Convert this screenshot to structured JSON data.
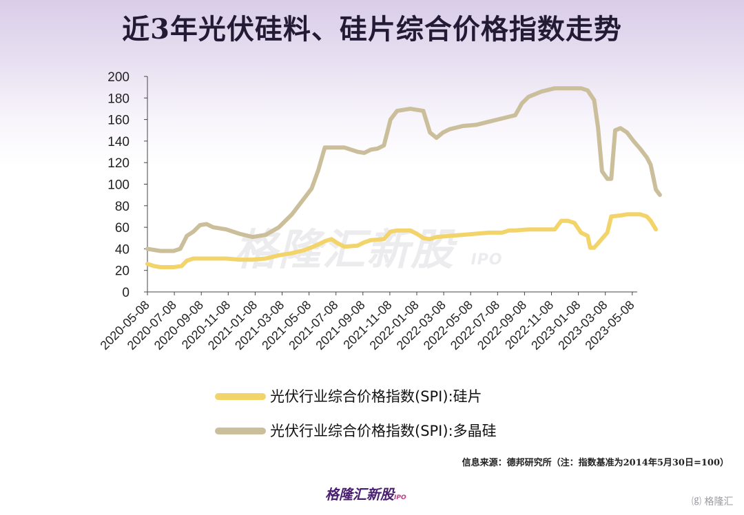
{
  "title": "近3年光伏硅料、硅片综合价格指数走势",
  "watermark": "格隆汇新股",
  "watermark_sub": "IPO",
  "source_note": "信息来源：德邦研究所（注：指数基准为2014年5月30日=100）",
  "brand_logo": "格隆汇新股",
  "brand_logo_sub": "IPO",
  "corner_logo": "格隆汇",
  "colors": {
    "wafer": "#f2d46a",
    "polysilicon": "#cbbf9b",
    "axis": "#444444"
  },
  "chart_data": {
    "type": "line",
    "x_tick_labels": [
      "2020-05-08",
      "2020-07-08",
      "2020-09-08",
      "2020-11-08",
      "2021-01-08",
      "2021-03-08",
      "2021-05-08",
      "2021-07-08",
      "2021-09-08",
      "2021-11-08",
      "2022-01-08",
      "2022-03-08",
      "2022-05-08",
      "2022-07-08",
      "2022-09-08",
      "2022-11-08",
      "2023-01-08",
      "2023-03-08",
      "2023-05-08"
    ],
    "x_range_months": [
      0,
      37
    ],
    "ylim": [
      0,
      200
    ],
    "y_ticks": [
      0,
      20,
      40,
      60,
      80,
      100,
      120,
      140,
      160,
      180,
      200
    ],
    "grid": false,
    "legend_position": "bottom",
    "series": [
      {
        "name": "光伏行业综合价格指数(SPI):硅片",
        "color_key": "wafer",
        "points": [
          [
            0,
            26
          ],
          [
            0.5,
            24
          ],
          [
            1,
            23
          ],
          [
            2,
            23
          ],
          [
            2.6,
            24
          ],
          [
            3,
            29
          ],
          [
            3.5,
            31
          ],
          [
            4,
            31
          ],
          [
            5,
            31
          ],
          [
            6,
            31
          ],
          [
            7,
            30
          ],
          [
            8,
            30
          ],
          [
            9,
            31
          ],
          [
            10,
            34
          ],
          [
            11,
            36
          ],
          [
            12,
            39
          ],
          [
            13,
            44
          ],
          [
            13.5,
            47
          ],
          [
            14,
            49
          ],
          [
            14.5,
            45
          ],
          [
            15,
            42
          ],
          [
            16,
            43
          ],
          [
            16.5,
            46
          ],
          [
            17,
            48
          ],
          [
            18,
            49
          ],
          [
            18.5,
            56
          ],
          [
            19,
            57
          ],
          [
            20,
            57
          ],
          [
            20.5,
            54
          ],
          [
            21,
            50
          ],
          [
            21.5,
            49
          ],
          [
            22,
            51
          ],
          [
            23,
            52
          ],
          [
            24,
            53
          ],
          [
            25,
            54
          ],
          [
            26,
            55
          ],
          [
            27,
            55
          ],
          [
            27.5,
            57
          ],
          [
            28,
            57
          ],
          [
            29,
            58
          ],
          [
            30,
            58
          ],
          [
            31,
            58
          ],
          [
            31.5,
            66
          ],
          [
            32,
            66
          ],
          [
            32.5,
            64
          ],
          [
            33,
            55
          ],
          [
            33.5,
            52
          ],
          [
            33.7,
            41
          ],
          [
            34,
            41
          ],
          [
            34.5,
            48
          ],
          [
            35,
            55
          ],
          [
            35.3,
            70
          ],
          [
            36,
            71
          ],
          [
            36.5,
            72
          ],
          [
            37,
            72
          ],
          [
            37.5,
            72
          ],
          [
            38,
            70
          ],
          [
            38.3,
            66
          ],
          [
            38.7,
            58
          ]
        ]
      },
      {
        "name": "光伏行业综合价格指数(SPI):多晶硅",
        "color_key": "polysilicon",
        "points": [
          [
            0,
            40
          ],
          [
            1,
            38
          ],
          [
            2,
            38
          ],
          [
            2.5,
            40
          ],
          [
            3,
            52
          ],
          [
            3.5,
            56
          ],
          [
            4,
            62
          ],
          [
            4.5,
            63
          ],
          [
            5,
            60
          ],
          [
            6,
            58
          ],
          [
            7,
            54
          ],
          [
            8,
            51
          ],
          [
            9,
            53
          ],
          [
            10,
            60
          ],
          [
            11,
            72
          ],
          [
            12,
            88
          ],
          [
            12.5,
            96
          ],
          [
            13,
            113
          ],
          [
            13.5,
            134
          ],
          [
            14.5,
            134
          ],
          [
            15,
            134
          ],
          [
            16,
            130
          ],
          [
            16.5,
            129
          ],
          [
            17,
            132
          ],
          [
            17.5,
            133
          ],
          [
            18,
            136
          ],
          [
            18.5,
            160
          ],
          [
            19,
            168
          ],
          [
            20,
            170
          ],
          [
            21,
            168
          ],
          [
            21.5,
            148
          ],
          [
            22,
            143
          ],
          [
            22.5,
            148
          ],
          [
            23,
            151
          ],
          [
            24,
            154
          ],
          [
            25,
            155
          ],
          [
            26,
            158
          ],
          [
            27,
            161
          ],
          [
            28,
            164
          ],
          [
            28.5,
            175
          ],
          [
            29,
            181
          ],
          [
            30,
            186
          ],
          [
            31,
            189
          ],
          [
            32,
            189
          ],
          [
            33,
            189
          ],
          [
            33.5,
            187
          ],
          [
            34,
            178
          ],
          [
            34.3,
            152
          ],
          [
            34.6,
            112
          ],
          [
            35,
            105
          ],
          [
            35.3,
            105
          ],
          [
            35.6,
            150
          ],
          [
            36,
            152
          ],
          [
            36.5,
            148
          ],
          [
            37,
            140
          ],
          [
            37.5,
            133
          ],
          [
            38,
            125
          ],
          [
            38.3,
            118
          ],
          [
            38.7,
            95
          ],
          [
            39,
            90
          ]
        ]
      }
    ]
  }
}
